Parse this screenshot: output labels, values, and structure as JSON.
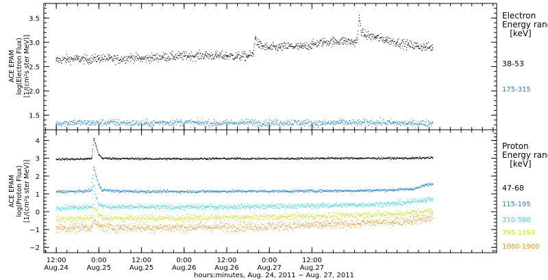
{
  "chart_data": [
    {
      "type": "scatter",
      "panel": "electron",
      "ylabel_lines": [
        "ACE EPAM",
        "log(Electron Flux)",
        "[1/(cm²s ster MeV)]"
      ],
      "ylim": [
        1.2,
        3.8
      ],
      "yticks": [
        1.5,
        2.0,
        2.5,
        3.0,
        3.5
      ],
      "ytick_labels": [
        "1.5",
        "2.0",
        "2.5",
        "3.0",
        "3.5"
      ],
      "legend_title_lines": [
        "Electron",
        "Energy ranges",
        "[keV]"
      ],
      "series": [
        {
          "name": "38-53",
          "color": "#000000",
          "points": [
            [
              0,
              2.63
            ],
            [
              3,
              2.65
            ],
            [
              6,
              2.66
            ],
            [
              9,
              2.64
            ],
            [
              12,
              2.67
            ],
            [
              15,
              2.66
            ],
            [
              18,
              2.65
            ],
            [
              21,
              2.69
            ],
            [
              24,
              2.66
            ],
            [
              27,
              2.68
            ],
            [
              30,
              2.7
            ],
            [
              33,
              2.7
            ],
            [
              36,
              2.72
            ],
            [
              39,
              2.72
            ],
            [
              42,
              2.73
            ],
            [
              45,
              2.72
            ],
            [
              48,
              2.72
            ],
            [
              51,
              2.71
            ],
            [
              54,
              2.72
            ],
            [
              55.5,
              2.75
            ],
            [
              56,
              3.1
            ],
            [
              57,
              2.95
            ],
            [
              58,
              2.92
            ],
            [
              60,
              2.88
            ],
            [
              63,
              2.9
            ],
            [
              66,
              2.92
            ],
            [
              69,
              2.9
            ],
            [
              72,
              2.95
            ],
            [
              75,
              3.0
            ],
            [
              78,
              3.02
            ],
            [
              81,
              3.03
            ],
            [
              84,
              3.0
            ],
            [
              84.8,
              3.05
            ],
            [
              85.3,
              3.5
            ],
            [
              86,
              3.2
            ],
            [
              87,
              3.15
            ],
            [
              90,
              3.1
            ],
            [
              93,
              3.05
            ],
            [
              96,
              3.0
            ],
            [
              99,
              2.95
            ],
            [
              102,
              2.92
            ],
            [
              104,
              2.9
            ],
            [
              106,
              2.89
            ]
          ]
        },
        {
          "name": "175-315",
          "color": "#1f7fd0",
          "points": [
            [
              0,
              1.33
            ],
            [
              5,
              1.35
            ],
            [
              10,
              1.34
            ],
            [
              15,
              1.35
            ],
            [
              20,
              1.34
            ],
            [
              25,
              1.33
            ],
            [
              30,
              1.35
            ],
            [
              35,
              1.35
            ],
            [
              40,
              1.34
            ],
            [
              45,
              1.33
            ],
            [
              50,
              1.34
            ],
            [
              55,
              1.35
            ],
            [
              60,
              1.34
            ],
            [
              65,
              1.35
            ],
            [
              70,
              1.34
            ],
            [
              75,
              1.33
            ],
            [
              80,
              1.35
            ],
            [
              85,
              1.34
            ],
            [
              90,
              1.35
            ],
            [
              95,
              1.34
            ],
            [
              100,
              1.33
            ],
            [
              106,
              1.34
            ]
          ]
        }
      ]
    },
    {
      "type": "scatter",
      "panel": "proton",
      "ylabel_lines": [
        "ACE EPAM",
        "log(Proton Flux)",
        "[1/(cm²s ster MeV)]"
      ],
      "ylim": [
        -2.3,
        4.6
      ],
      "yticks": [
        -2,
        -1,
        0,
        1,
        2,
        3,
        4
      ],
      "ytick_labels": [
        "−2",
        "−1",
        "0",
        "1",
        "2",
        "3",
        "4"
      ],
      "legend_title_lines": [
        "Proton",
        "Energy ranges",
        "[keV]"
      ],
      "series": [
        {
          "name": "47-68",
          "color": "#000000",
          "points": [
            [
              0,
              2.95
            ],
            [
              5,
              2.95
            ],
            [
              8,
              2.96
            ],
            [
              10,
              3.0
            ],
            [
              10.6,
              4.1
            ],
            [
              11.2,
              3.7
            ],
            [
              12,
              3.2
            ],
            [
              13,
              3.0
            ],
            [
              18,
              2.98
            ],
            [
              25,
              2.97
            ],
            [
              35,
              2.97
            ],
            [
              45,
              2.98
            ],
            [
              55,
              2.98
            ],
            [
              65,
              2.98
            ],
            [
              75,
              3.0
            ],
            [
              85,
              3.0
            ],
            [
              95,
              3.0
            ],
            [
              100,
              3.0
            ],
            [
              104,
              3.02
            ],
            [
              106,
              3.03
            ]
          ]
        },
        {
          "name": "115-195",
          "color": "#1f7fd0",
          "points": [
            [
              0,
              1.12
            ],
            [
              5,
              1.13
            ],
            [
              8,
              1.15
            ],
            [
              10,
              1.2
            ],
            [
              10.6,
              2.5
            ],
            [
              11.2,
              2.0
            ],
            [
              12,
              1.5
            ],
            [
              13,
              1.22
            ],
            [
              18,
              1.15
            ],
            [
              25,
              1.13
            ],
            [
              35,
              1.13
            ],
            [
              45,
              1.14
            ],
            [
              55,
              1.15
            ],
            [
              65,
              1.15
            ],
            [
              75,
              1.17
            ],
            [
              85,
              1.18
            ],
            [
              95,
              1.22
            ],
            [
              100,
              1.27
            ],
            [
              102,
              1.35
            ],
            [
              104,
              1.5
            ],
            [
              106,
              1.55
            ]
          ]
        },
        {
          "name": "310-580",
          "color": "#33d6d6",
          "points": [
            [
              0,
              0.22
            ],
            [
              5,
              0.24
            ],
            [
              8,
              0.26
            ],
            [
              10,
              0.3
            ],
            [
              10.6,
              1.5
            ],
            [
              11.2,
              0.8
            ],
            [
              12,
              0.45
            ],
            [
              13,
              0.3
            ],
            [
              18,
              0.26
            ],
            [
              25,
              0.25
            ],
            [
              35,
              0.25
            ],
            [
              45,
              0.27
            ],
            [
              55,
              0.28
            ],
            [
              65,
              0.3
            ],
            [
              75,
              0.34
            ],
            [
              85,
              0.38
            ],
            [
              95,
              0.45
            ],
            [
              100,
              0.55
            ],
            [
              104,
              0.68
            ],
            [
              106,
              0.72
            ]
          ]
        },
        {
          "name": "795-1193",
          "color": "#c7e01a",
          "points": [
            [
              0,
              -0.42
            ],
            [
              5,
              -0.4
            ],
            [
              8,
              -0.38
            ],
            [
              10,
              -0.34
            ],
            [
              10.6,
              0.4
            ],
            [
              11.2,
              0.1
            ],
            [
              12,
              -0.2
            ],
            [
              13,
              -0.34
            ],
            [
              18,
              -0.38
            ],
            [
              25,
              -0.37
            ],
            [
              35,
              -0.36
            ],
            [
              45,
              -0.34
            ],
            [
              55,
              -0.32
            ],
            [
              65,
              -0.28
            ],
            [
              75,
              -0.24
            ],
            [
              85,
              -0.18
            ],
            [
              95,
              -0.12
            ],
            [
              100,
              -0.06
            ],
            [
              104,
              0.0
            ],
            [
              106,
              0.02
            ]
          ]
        },
        {
          "name": "1060-1900",
          "color": "#f08c1a",
          "points": [
            [
              0,
              -0.92
            ],
            [
              5,
              -0.9
            ],
            [
              8,
              -0.88
            ],
            [
              10,
              -0.85
            ],
            [
              10.6,
              -0.5
            ],
            [
              11.2,
              -0.7
            ],
            [
              12,
              -0.82
            ],
            [
              13,
              -0.86
            ],
            [
              18,
              -0.9
            ],
            [
              25,
              -0.9
            ],
            [
              35,
              -0.88
            ],
            [
              45,
              -0.86
            ],
            [
              55,
              -0.84
            ],
            [
              65,
              -0.8
            ],
            [
              75,
              -0.74
            ],
            [
              85,
              -0.66
            ],
            [
              95,
              -0.56
            ],
            [
              100,
              -0.48
            ],
            [
              104,
              -0.4
            ],
            [
              106,
              -0.36
            ]
          ]
        }
      ]
    }
  ],
  "xaxis": {
    "range_hours": [
      -3.5,
      124
    ],
    "ticks": [
      {
        "h": 0,
        "l1": "12:00",
        "l2": "Aug.24"
      },
      {
        "h": 12,
        "l1": "0:00",
        "l2": "Aug.25"
      },
      {
        "h": 24,
        "l1": "12:00",
        "l2": "Aug.25"
      },
      {
        "h": 36,
        "l1": "0:00",
        "l2": "Aug.26"
      },
      {
        "h": 48,
        "l1": "12:00",
        "l2": "Aug.26"
      },
      {
        "h": 60,
        "l1": "0:00",
        "l2": "Aug.27"
      },
      {
        "h": 72,
        "l1": "12:00",
        "l2": "Aug.27"
      }
    ],
    "title": "hours:minutes, Aug. 24, 2011 − Aug. 27, 2011"
  }
}
